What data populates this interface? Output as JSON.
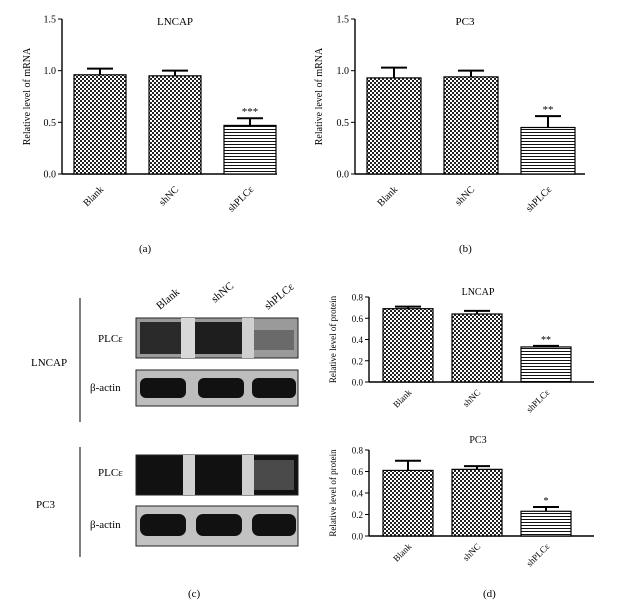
{
  "subfigure_labels": {
    "a": "(a)",
    "b": "(b)",
    "c": "(c)",
    "d": "(d)"
  },
  "chart_data": [
    {
      "type": "bar",
      "title": "LNCAP",
      "ylabel": "Relative level of mRNA",
      "categories": [
        "Blank",
        "shNC",
        "shPLCε"
      ],
      "values": [
        0.96,
        0.95,
        0.47
      ],
      "errors": [
        0.06,
        0.05,
        0.07
      ],
      "significance": [
        "",
        "",
        "***"
      ],
      "patterns": [
        "checker",
        "checker",
        "hlines"
      ],
      "ylim": [
        0,
        1.5
      ],
      "yticks": [
        "0.0",
        "0.5",
        "1.0",
        "1.5"
      ]
    },
    {
      "type": "bar",
      "title": "PC3",
      "ylabel": "Relative level of mRNA",
      "categories": [
        "Blank",
        "shNC",
        "shPLCε"
      ],
      "values": [
        0.93,
        0.94,
        0.45
      ],
      "errors": [
        0.1,
        0.06,
        0.11
      ],
      "significance": [
        "",
        "",
        "**"
      ],
      "patterns": [
        "checker",
        "checker",
        "hlines"
      ],
      "ylim": [
        0,
        1.5
      ],
      "yticks": [
        "0.0",
        "0.5",
        "1.0",
        "1.5"
      ]
    },
    {
      "type": "bar",
      "title": "LNCAP",
      "ylabel": "Relative level of protein",
      "categories": [
        "Blank",
        "shNC",
        "shPLCε"
      ],
      "values": [
        0.69,
        0.64,
        0.33
      ],
      "errors": [
        0.02,
        0.03,
        0.01
      ],
      "significance": [
        "",
        "",
        "**"
      ],
      "patterns": [
        "checker",
        "checker",
        "hlines"
      ],
      "ylim": [
        0,
        0.8
      ],
      "yticks": [
        "0.0",
        "0.2",
        "0.4",
        "0.6",
        "0.8"
      ]
    },
    {
      "type": "bar",
      "title": "PC3",
      "ylabel": "Relative level of protein",
      "categories": [
        "Blank",
        "shNC",
        "shPLCε"
      ],
      "values": [
        0.61,
        0.62,
        0.23
      ],
      "errors": [
        0.09,
        0.03,
        0.04
      ],
      "significance": [
        "",
        "",
        "*"
      ],
      "patterns": [
        "checker",
        "checker",
        "hlines"
      ],
      "ylim": [
        0,
        0.8
      ],
      "yticks": [
        "0.0",
        "0.2",
        "0.4",
        "0.6",
        "0.8"
      ]
    }
  ],
  "blot": {
    "lanes": [
      "Blank",
      "shNC",
      "shPLCε"
    ],
    "groups": [
      {
        "cell_line": "LNCAP",
        "rows": [
          "PLCε",
          "β-actin"
        ]
      },
      {
        "cell_line": "PC3",
        "rows": [
          "PLCε",
          "β-actin"
        ]
      }
    ]
  }
}
